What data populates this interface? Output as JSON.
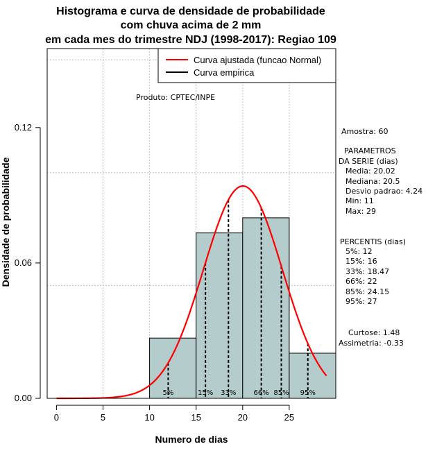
{
  "chart_data": {
    "type": "histogram",
    "title": [
      "Histograma e curva de densidade de probabilidade",
      "com chuva acima de 2 mm",
      "em cada mes do trimestre NDJ (1998-2017): Regiao 109"
    ],
    "xlabel": "Numero de dias",
    "ylabel": "Densidade de probabilidade",
    "xlim": [
      -1,
      30
    ],
    "ylim": [
      0,
      0.155
    ],
    "xticks": [
      0,
      5,
      10,
      15,
      20,
      25
    ],
    "yticks": [
      0.0,
      0.06,
      0.12
    ],
    "ytick_labels": [
      "0.00",
      "0.06",
      "0.12"
    ],
    "grid": true,
    "grid_x": [
      5,
      10,
      15,
      20,
      25
    ],
    "grid_y": [
      0.05,
      0.1,
      0.15
    ],
    "bins": [
      {
        "from": 10,
        "to": 15,
        "density": 0.0267
      },
      {
        "from": 15,
        "to": 20,
        "density": 0.0733
      },
      {
        "from": 20,
        "to": 25,
        "density": 0.08
      },
      {
        "from": 25,
        "to": 30,
        "density": 0.02
      }
    ],
    "bar_color": "#b4cccc",
    "curve_color": "#ff0000",
    "normal_curve": {
      "mean": 20.02,
      "sd": 4.24,
      "x_from": 0,
      "x_to": 29
    },
    "percentiles": [
      {
        "label": "5%",
        "value": 12
      },
      {
        "label": "15%",
        "value": 16
      },
      {
        "label": "33%",
        "value": 18.47
      },
      {
        "label": "66%",
        "value": 22
      },
      {
        "label": "85%",
        "value": 24.15
      },
      {
        "label": "95%",
        "value": 27
      }
    ],
    "legend": [
      {
        "label": "Curva ajustada (funcao Normal)",
        "color": "#ff0000"
      },
      {
        "label": "Curva empirica",
        "color": "#000000"
      }
    ],
    "legend_position": "top-right"
  },
  "annotations": {
    "produto": "Produto: CPTEC/INPE",
    "amostra": "Amostra: 60",
    "params_header_1": "PARAMETROS",
    "params_header_2": "DA SERIE (dias)",
    "media": "Media: 20.02",
    "mediana": "Mediana: 20.5",
    "desvio": "Desvio padrao: 4.24",
    "min": "Min: 11",
    "max": "Max: 29",
    "percentis_header": "PERCENTIS (dias)",
    "p5": "5%: 12",
    "p15": "15%: 16",
    "p33": "33%: 18.47",
    "p66": "66%: 22",
    "p85": "85%: 24.15",
    "p95": "95%: 27",
    "curtose": "Curtose: 1.48",
    "assimetria": "Assimetria: -0.33"
  }
}
